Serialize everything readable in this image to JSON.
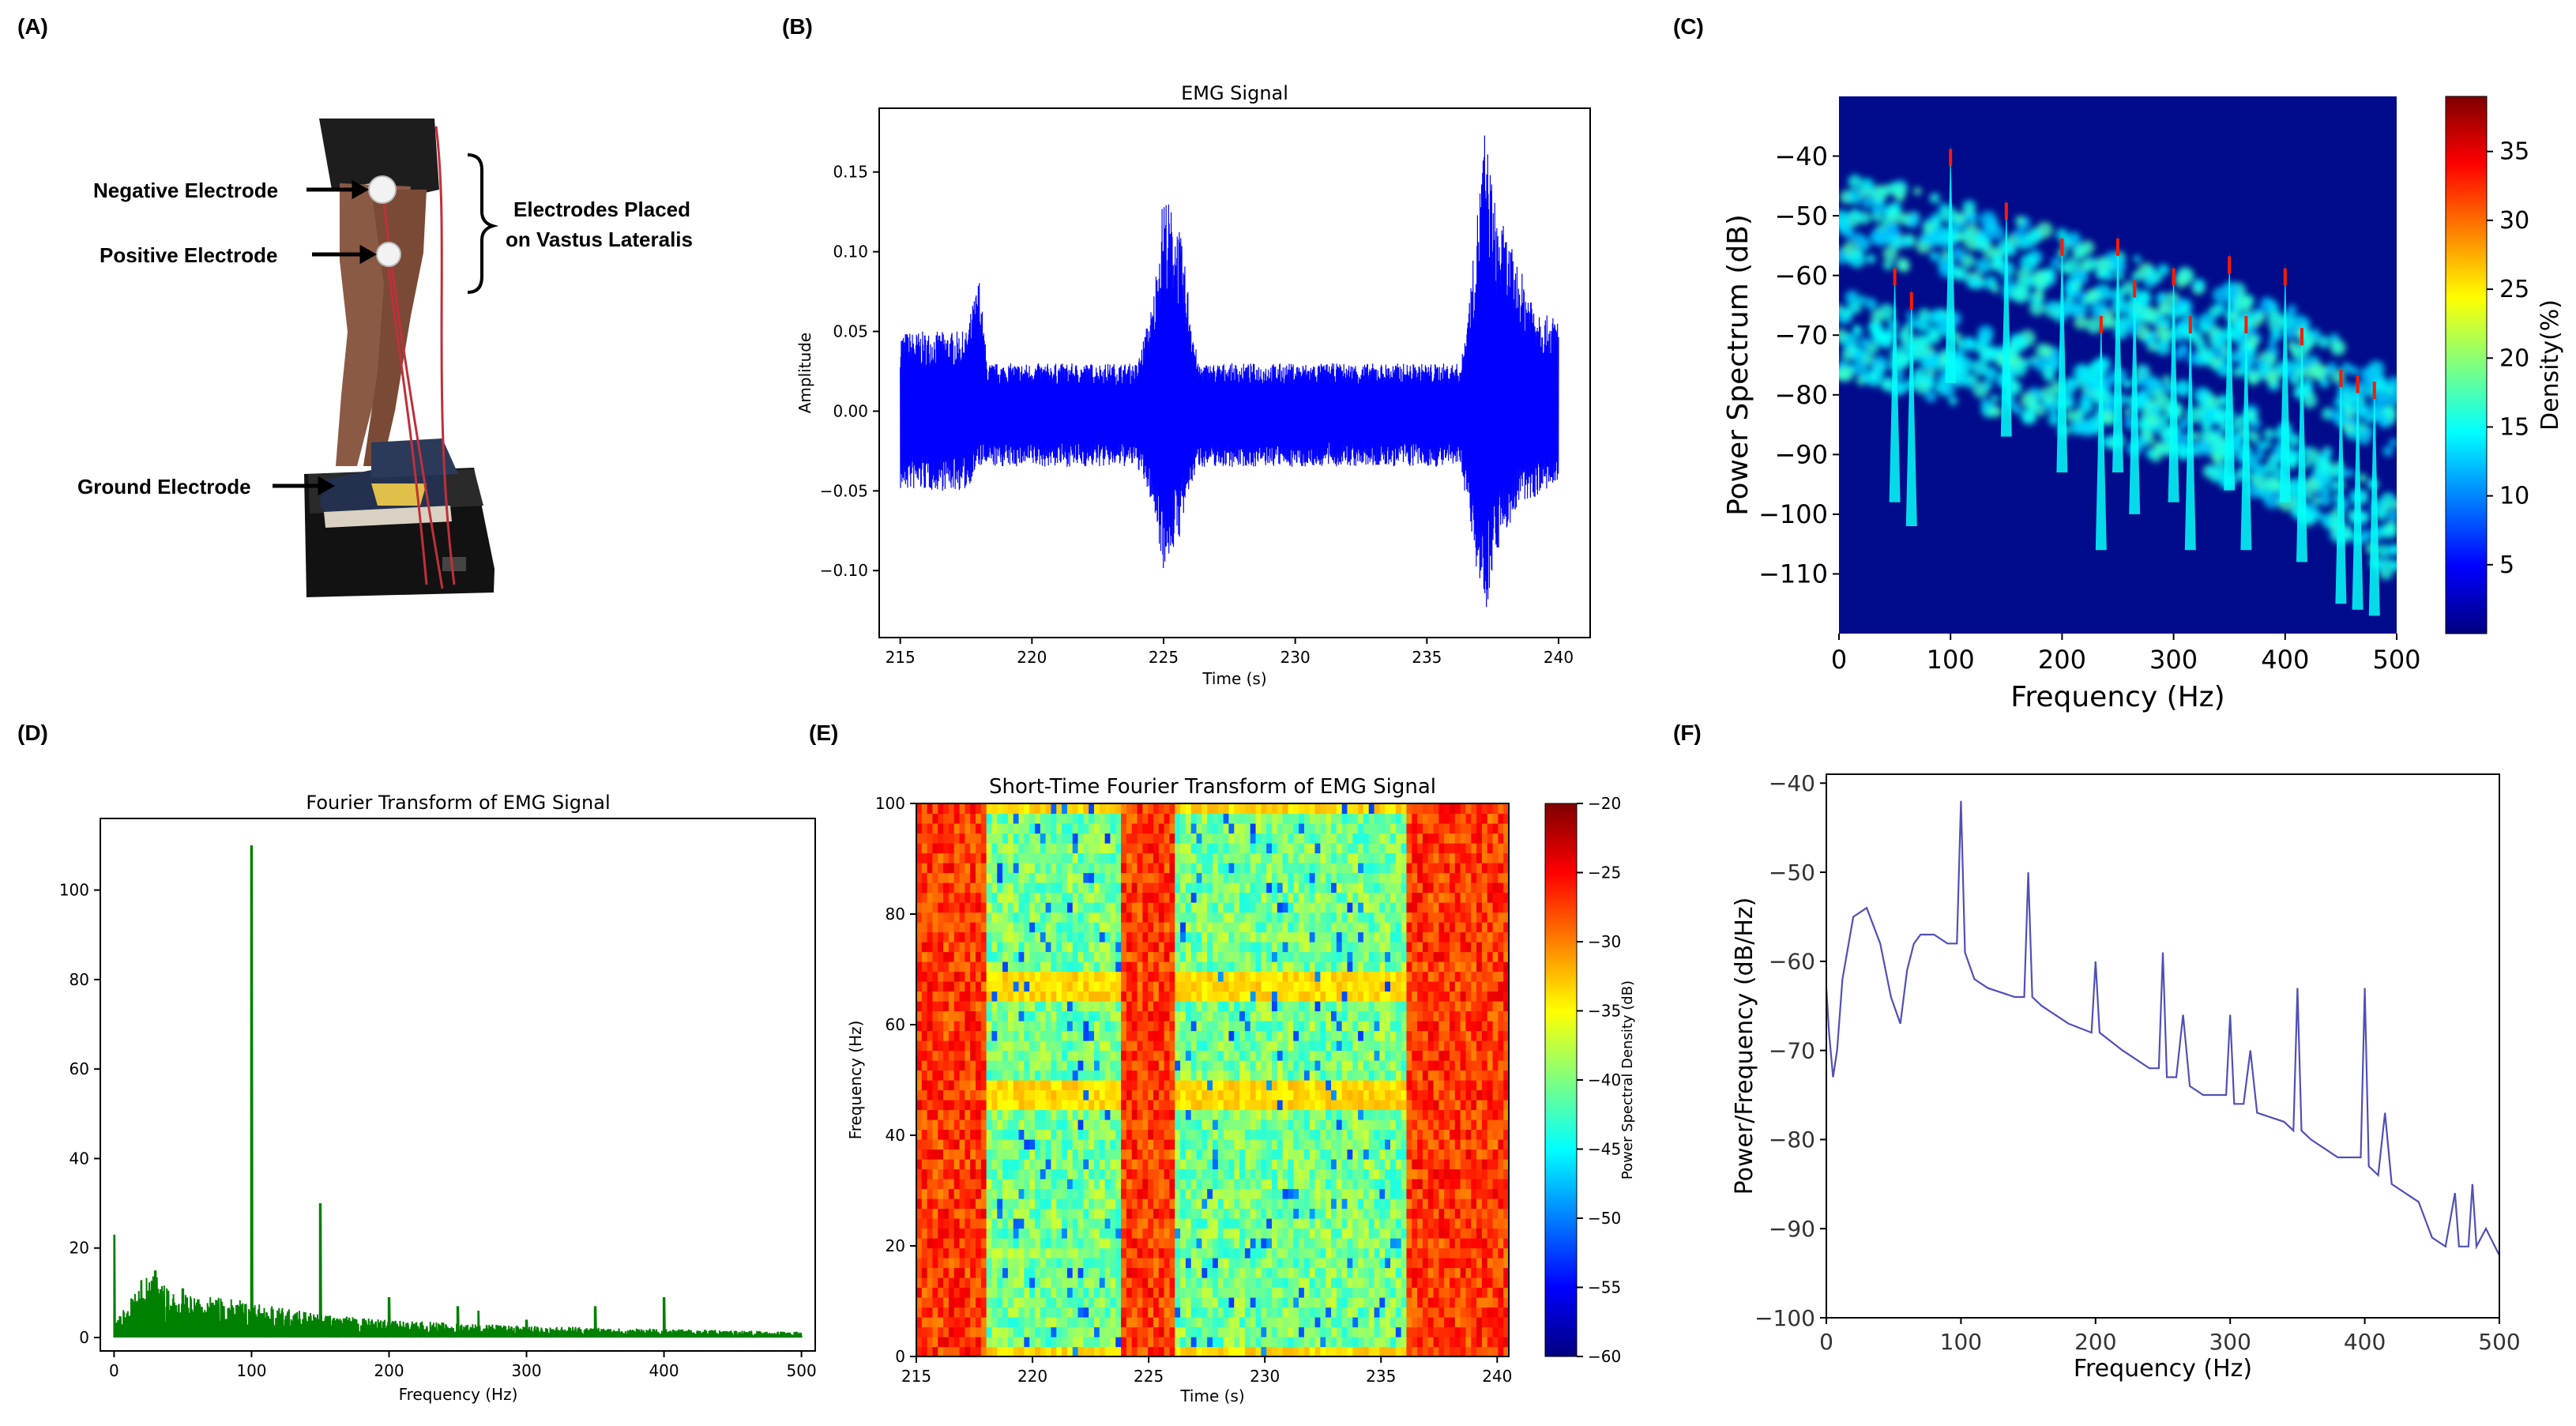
{
  "panels": {
    "a": {
      "letter": "(A)",
      "labels": {
        "negative": "Negative Electrode",
        "positive": "Positive Electrode",
        "placed_line1": "Electrodes Placed",
        "placed_line2": "on Vastus Lateralis",
        "ground": "Ground Electrode"
      }
    },
    "b": {
      "letter": "(B)"
    },
    "c": {
      "letter": "(C)"
    },
    "d": {
      "letter": "(D)"
    },
    "e": {
      "letter": "(E)"
    },
    "f": {
      "letter": "(F)"
    }
  },
  "chart_data": [
    {
      "id": "B",
      "type": "line",
      "title": "EMG Signal",
      "xlabel": "Time (s)",
      "ylabel": "Amplitude",
      "xlim": [
        214.2,
        241.2
      ],
      "ylim": [
        -0.142,
        0.19
      ],
      "xticks": [
        215,
        220,
        225,
        230,
        235,
        240
      ],
      "yticks": [
        -0.1,
        -0.05,
        0.0,
        0.05,
        0.1,
        0.15
      ],
      "xtick_labels": [
        "215",
        "220",
        "225",
        "230",
        "235",
        "240"
      ],
      "ytick_labels": [
        "−0.10",
        "−0.05",
        "0.00",
        "0.05",
        "0.10",
        "0.15"
      ],
      "color": "#0000ff",
      "envelope": {
        "t": [
          215,
          215.5,
          217.5,
          218.0,
          218.3,
          224.0,
          224.6,
          225.0,
          225.6,
          226.0,
          226.3,
          236.3,
          236.7,
          237.2,
          237.6,
          238.5,
          239.5,
          240.0
        ],
        "upper": [
          0.05,
          0.05,
          0.05,
          0.085,
          0.03,
          0.03,
          0.07,
          0.14,
          0.115,
          0.07,
          0.03,
          0.03,
          0.085,
          0.18,
          0.13,
          0.09,
          0.06,
          0.06
        ],
        "lower": [
          -0.05,
          -0.05,
          -0.05,
          -0.035,
          -0.035,
          -0.035,
          -0.06,
          -0.1,
          -0.08,
          -0.05,
          -0.035,
          -0.035,
          -0.08,
          -0.13,
          -0.09,
          -0.06,
          -0.05,
          -0.05
        ]
      }
    },
    {
      "id": "C",
      "type": "heatmap",
      "title": "",
      "xlabel": "Frequency (Hz)",
      "ylabel": "Power Spectrum (dB)",
      "xlim": [
        0,
        500
      ],
      "ylim": [
        -120,
        -30
      ],
      "xticks": [
        0,
        100,
        200,
        300,
        400,
        500
      ],
      "yticks": [
        -110,
        -100,
        -90,
        -80,
        -70,
        -60,
        -50,
        -40
      ],
      "xtick_labels": [
        "0",
        "100",
        "200",
        "300",
        "400",
        "500"
      ],
      "ytick_labels": [
        "−110",
        "−100",
        "−90",
        "−80",
        "−70",
        "−60",
        "−50",
        "−40"
      ],
      "colorbar": {
        "label": "Density(%)",
        "range": [
          0,
          39
        ],
        "ticks": [
          5,
          10,
          15,
          20,
          25,
          30,
          35
        ],
        "tick_labels": [
          "5",
          "10",
          "15",
          "20",
          "25",
          "30",
          "35"
        ]
      },
      "background": "#000c8c",
      "band_upper": {
        "f": [
          0,
          50,
          100,
          200,
          300,
          400,
          500
        ],
        "db": [
          -50,
          -52,
          -54,
          -60,
          -66,
          -72,
          -84
        ]
      },
      "band_lower": {
        "f": [
          0,
          100,
          200,
          300,
          400,
          500
        ],
        "db": [
          -70,
          -74,
          -79,
          -84,
          -92,
          -104
        ]
      },
      "peaks": [
        {
          "f": 50,
          "top": -58
        },
        {
          "f": 65,
          "top": -62
        },
        {
          "f": 100,
          "top": -38
        },
        {
          "f": 150,
          "top": -47
        },
        {
          "f": 200,
          "top": -53
        },
        {
          "f": 235,
          "top": -66
        },
        {
          "f": 250,
          "top": -53
        },
        {
          "f": 265,
          "top": -60
        },
        {
          "f": 300,
          "top": -58
        },
        {
          "f": 315,
          "top": -66
        },
        {
          "f": 350,
          "top": -56
        },
        {
          "f": 365,
          "top": -66
        },
        {
          "f": 400,
          "top": -58
        },
        {
          "f": 415,
          "top": -68
        },
        {
          "f": 450,
          "top": -75
        },
        {
          "f": 465,
          "top": -76
        },
        {
          "f": 480,
          "top": -77
        }
      ]
    },
    {
      "id": "D",
      "type": "line",
      "title": "Fourier Transform of EMG Signal",
      "xlabel": "Frequency (Hz)",
      "ylabel": "",
      "xlim": [
        -10,
        510
      ],
      "ylim": [
        -3,
        116
      ],
      "xticks": [
        0,
        100,
        200,
        300,
        400,
        500
      ],
      "yticks": [
        0,
        20,
        40,
        60,
        80,
        100
      ],
      "xtick_labels": [
        "0",
        "100",
        "200",
        "300",
        "400",
        "500"
      ],
      "ytick_labels": [
        "0",
        "20",
        "40",
        "60",
        "80",
        "100"
      ],
      "color": "#008000",
      "floor": {
        "f": [
          0,
          10,
          20,
          30,
          40,
          60,
          80,
          100,
          150,
          200,
          250,
          300,
          400,
          500
        ],
        "amp": [
          3,
          6,
          10,
          11,
          8,
          7,
          7,
          6,
          4,
          3,
          2.5,
          2,
          1.5,
          1
        ]
      },
      "peaks": [
        {
          "f": 0,
          "amp": 23
        },
        {
          "f": 30,
          "amp": 15
        },
        {
          "f": 50,
          "amp": 11
        },
        {
          "f": 100,
          "amp": 110
        },
        {
          "f": 150,
          "amp": 30
        },
        {
          "f": 200,
          "amp": 9
        },
        {
          "f": 250,
          "amp": 7
        },
        {
          "f": 265,
          "amp": 6
        },
        {
          "f": 300,
          "amp": 4
        },
        {
          "f": 350,
          "amp": 7
        },
        {
          "f": 400,
          "amp": 9
        }
      ]
    },
    {
      "id": "E",
      "type": "heatmap",
      "title": "Short-Time Fourier Transform of EMG Signal",
      "xlabel": "Time (s)",
      "ylabel": "Frequency (Hz)",
      "xlim": [
        215,
        240.5
      ],
      "ylim": [
        0,
        100
      ],
      "xticks": [
        215,
        220,
        225,
        230,
        235,
        240
      ],
      "yticks": [
        0,
        20,
        40,
        60,
        80,
        100
      ],
      "xtick_labels": [
        "215",
        "220",
        "225",
        "230",
        "235",
        "240"
      ],
      "ytick_labels": [
        "0",
        "20",
        "40",
        "60",
        "80",
        "100"
      ],
      "colorbar": {
        "label": "Power Spectral Density (dB)",
        "range": [
          -60,
          -20
        ],
        "ticks": [
          -60,
          -55,
          -50,
          -45,
          -40,
          -35,
          -30,
          -25,
          -20
        ],
        "tick_labels": [
          "−60",
          "−55",
          "−50",
          "−45",
          "−40",
          "−35",
          "−30",
          "−25",
          "−20"
        ]
      },
      "active_intervals": [
        [
          215,
          218
        ],
        [
          223.8,
          226.2
        ],
        [
          236.2,
          240.5
        ]
      ],
      "bright_bands_hz": [
        0,
        48,
        67,
        100
      ]
    },
    {
      "id": "F",
      "type": "line",
      "title": "",
      "xlabel": "Frequency (Hz)",
      "ylabel": "Power/Frequency (dB/Hz)",
      "xlim": [
        0,
        500
      ],
      "ylim": [
        -100,
        -39
      ],
      "xticks": [
        0,
        100,
        200,
        300,
        400,
        500
      ],
      "yticks": [
        -100,
        -90,
        -80,
        -70,
        -60,
        -50,
        -40
      ],
      "xtick_labels": [
        "0",
        "100",
        "200",
        "300",
        "400",
        "500"
      ],
      "ytick_labels": [
        "−100",
        "−90",
        "−80",
        "−70",
        "−60",
        "−50",
        "−40"
      ],
      "color": "#5050b8",
      "x": [
        0,
        2,
        5,
        8,
        12,
        20,
        30,
        40,
        48,
        55,
        60,
        65,
        70,
        80,
        90,
        97,
        100,
        103,
        110,
        120,
        140,
        147,
        150,
        153,
        160,
        180,
        197,
        200,
        203,
        220,
        240,
        247,
        250,
        253,
        260,
        265,
        270,
        280,
        297,
        300,
        303,
        310,
        315,
        320,
        340,
        347,
        350,
        353,
        360,
        370,
        380,
        397,
        400,
        403,
        410,
        415,
        420,
        440,
        450,
        460,
        467,
        470,
        477,
        480,
        483,
        490,
        500
      ],
      "y": [
        -63,
        -68,
        -73,
        -70,
        -62,
        -55,
        -54,
        -58,
        -64,
        -67,
        -61,
        -58,
        -57,
        -57,
        -58,
        -58,
        -42,
        -59,
        -62,
        -63,
        -64,
        -64,
        -50,
        -64,
        -65,
        -67,
        -68,
        -60,
        -68,
        -70,
        -72,
        -72,
        -59,
        -73,
        -73,
        -66,
        -74,
        -75,
        -75,
        -66,
        -76,
        -76,
        -70,
        -77,
        -78,
        -79,
        -63,
        -79,
        -80,
        -81,
        -82,
        -82,
        -63,
        -83,
        -84,
        -77,
        -85,
        -87,
        -91,
        -92,
        -86,
        -92,
        -92,
        -85,
        -92,
        -90,
        -93
      ]
    }
  ]
}
